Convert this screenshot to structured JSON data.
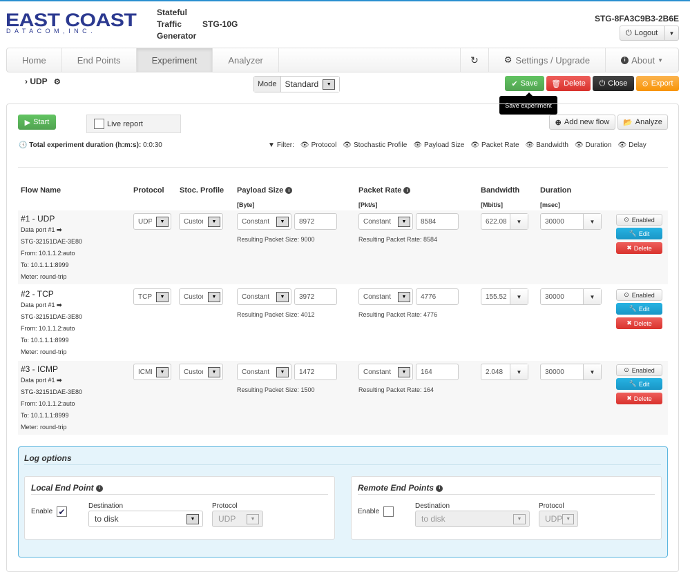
{
  "header": {
    "logo_main": "EAST COAST",
    "logo_sub": "DATACOM,INC.",
    "product_line1": "Stateful",
    "product_line2": "Traffic",
    "product_line3": "Generator",
    "model": "STG-10G",
    "device_id": "STG-8FA3C9B3-2B6E",
    "logout_label": "Logout"
  },
  "nav": {
    "items": [
      "Home",
      "End Points",
      "Experiment",
      "Analyzer"
    ],
    "active": "Experiment",
    "settings_label": "Settings / Upgrade",
    "about_label": "About"
  },
  "toolbar": {
    "breadcrumb": "UDP",
    "mode_label": "Mode",
    "mode_value": "Standard",
    "save_label": "Save",
    "delete_label": "Delete",
    "close_label": "Close",
    "export_label": "Export",
    "tooltip": "Save experiment"
  },
  "experiment": {
    "start_label": "Start",
    "live_report_label": "Live report",
    "duration_label": "Total experiment duration (h:m:s):",
    "duration_value": "0:0:30",
    "add_flow_label": "Add new flow",
    "analyze_label": "Analyze",
    "filter_label": "Filter:",
    "filters": [
      "Protocol",
      "Stochastic Profile",
      "Payload Size",
      "Packet Rate",
      "Bandwidth",
      "Duration",
      "Delay"
    ]
  },
  "table": {
    "headers": {
      "flow_name": "Flow Name",
      "protocol": "Protocol",
      "stoc_profile": "Stoc. Profile",
      "payload_size": "Payload Size",
      "payload_unit": "[Byte]",
      "packet_rate": "Packet Rate",
      "packet_rate_unit": "[Pkt/s]",
      "bandwidth": "Bandwidth",
      "bandwidth_unit": "[Mbit/s]",
      "duration": "Duration",
      "duration_unit": "[msec]"
    },
    "rows": [
      {
        "name": "#1 - UDP",
        "data_port": "Data port #1",
        "stg": "STG-32151DAE-3E80",
        "from": "From: 10.1.1.2:auto",
        "to": "To: 10.1.1.1:8999",
        "meter": "Meter: round-trip",
        "protocol": "UDP",
        "profile": "Custom",
        "payload_mode": "Constant",
        "payload_value": "8972",
        "payload_note": "Resulting Packet Size: 9000",
        "rate_mode": "Constant",
        "rate_value": "8584",
        "rate_note": "Resulting Packet Rate: 8584",
        "bandwidth": "622.08",
        "duration": "30000",
        "enabled_label": "Enabled",
        "edit_label": "Edit",
        "delete_label": "Delete"
      },
      {
        "name": "#2 - TCP",
        "data_port": "Data port #1",
        "stg": "STG-32151DAE-3E80",
        "from": "From: 10.1.1.2:auto",
        "to": "To: 10.1.1.1:8999",
        "meter": "Meter: round-trip",
        "protocol": "TCP",
        "profile": "Custom",
        "payload_mode": "Constant",
        "payload_value": "3972",
        "payload_note": "Resulting Packet Size: 4012",
        "rate_mode": "Constant",
        "rate_value": "4776",
        "rate_note": "Resulting Packet Rate: 4776",
        "bandwidth": "155.52",
        "duration": "30000",
        "enabled_label": "Enabled",
        "edit_label": "Edit",
        "delete_label": "Delete"
      },
      {
        "name": "#3 - ICMP",
        "data_port": "Data port #1",
        "stg": "STG-32151DAE-3E80",
        "from": "From: 10.1.1.2:auto",
        "to": "To: 10.1.1.1:8999",
        "meter": "Meter: round-trip",
        "protocol": "ICMP",
        "profile": "Custom",
        "payload_mode": "Constant",
        "payload_value": "1472",
        "payload_note": "Resulting Packet Size: 1500",
        "rate_mode": "Constant",
        "rate_value": "164",
        "rate_note": "Resulting Packet Rate: 164",
        "bandwidth": "2.048",
        "duration": "30000",
        "enabled_label": "Enabled",
        "edit_label": "Edit",
        "delete_label": "Delete"
      }
    ]
  },
  "log": {
    "title": "Log options",
    "local": {
      "title": "Local End Point",
      "enable_label": "Enable",
      "enabled": true,
      "destination_label": "Destination",
      "destination_value": "to disk",
      "protocol_label": "Protocol",
      "protocol_value": "UDP"
    },
    "remote": {
      "title": "Remote End Points",
      "enable_label": "Enable",
      "enabled": false,
      "destination_label": "Destination",
      "destination_value": "to disk",
      "protocol_label": "Protocol",
      "protocol_value": "UDP"
    }
  },
  "colors": {
    "brand": "#2b3990",
    "save": "#5cb85c",
    "delete": "#d9534f",
    "close": "#222222",
    "export": "#f89406",
    "edit": "#1aa3d3",
    "log_border": "#5bb5df",
    "log_bg": "#e5f4fb"
  }
}
